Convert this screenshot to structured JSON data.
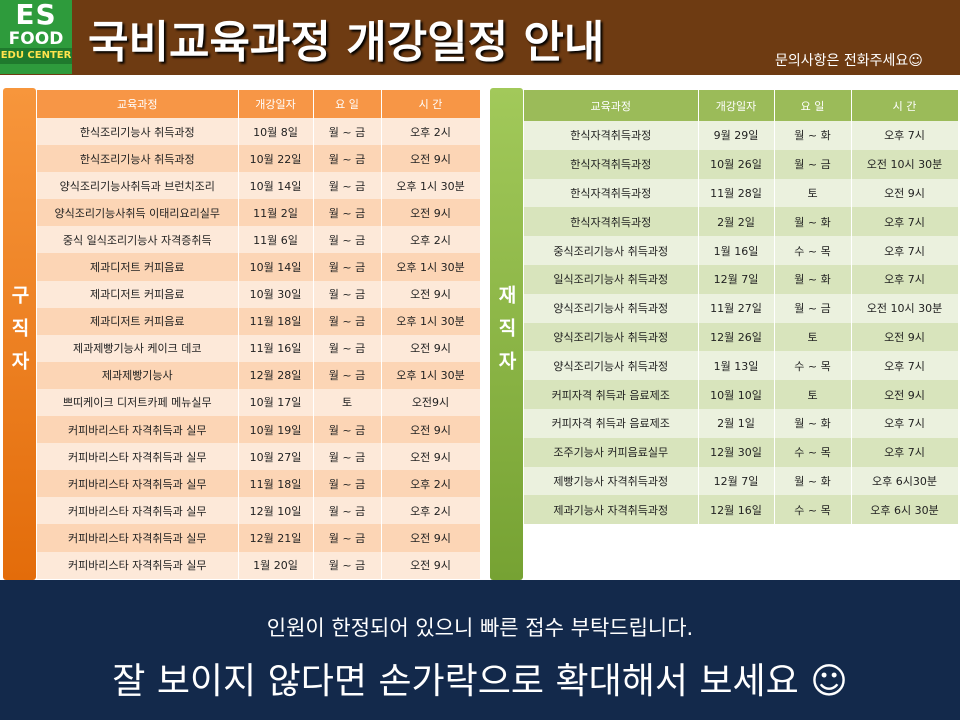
{
  "header": {
    "logo": {
      "top": "ES",
      "middle": "FOOD",
      "bottom": "EDU CENTER"
    },
    "title": "국비교육과정 개강일정 안내",
    "subtitle": "문의사항은 전화주세요☺"
  },
  "left_table": {
    "side_label": "구직자",
    "columns": [
      "교육과정",
      "개강일자",
      "요 일",
      "시 간"
    ],
    "rows": [
      [
        "한식조리기능사 취득과정",
        "10월 8일",
        "월 ~ 금",
        "오후 2시"
      ],
      [
        "한식조리기능사 취득과정",
        "10월 22일",
        "월 ~ 금",
        "오전 9시"
      ],
      [
        "양식조리기능사취득과 브런치조리",
        "10월 14일",
        "월 ~ 금",
        "오후 1시 30분"
      ],
      [
        "양식조리기능사취득 이태리요리실무",
        "11월 2일",
        "월 ~ 금",
        "오전 9시"
      ],
      [
        "중식 일식조리기능사 자격증취득",
        "11월 6일",
        "월 ~ 금",
        "오후 2시"
      ],
      [
        "제과디저트 커피음료",
        "10월 14일",
        "월 ~ 금",
        "오후 1시 30분"
      ],
      [
        "제과디저트 커피음료",
        "10월 30일",
        "월 ~ 금",
        "오전 9시"
      ],
      [
        "제과디저트 커피음료",
        "11월 18일",
        "월 ~ 금",
        "오후 1시 30분"
      ],
      [
        "제과제빵기능사 케이크 데코",
        "11월 16일",
        "월 ~ 금",
        "오전 9시"
      ],
      [
        "제과제빵기능사",
        "12월 28일",
        "월 ~ 금",
        "오후 1시 30분"
      ],
      [
        "쁘띠케이크 디저트카페 메뉴실무",
        "10월 17일",
        "토",
        "오전9시"
      ],
      [
        "커피바리스타 자격취득과 실무",
        "10월 19일",
        "월 ~ 금",
        "오전 9시"
      ],
      [
        "커피바리스타 자격취득과 실무",
        "10월 27일",
        "월 ~ 금",
        "오전 9시"
      ],
      [
        "커피바리스타 자격취득과 실무",
        "11월 18일",
        "월 ~ 금",
        "오후 2시"
      ],
      [
        "커피바리스타 자격취득과 실무",
        "12월 10일",
        "월 ~ 금",
        "오후 2시"
      ],
      [
        "커피바리스타 자격취득과 실무",
        "12월 21일",
        "월 ~ 금",
        "오전 9시"
      ],
      [
        "커피바리스타 자격취득과 실무",
        "1월 20일",
        "월 ~ 금",
        "오전 9시"
      ]
    ]
  },
  "right_table": {
    "side_label": "재직자",
    "columns": [
      "교육과정",
      "개강일자",
      "요 일",
      "시 간"
    ],
    "rows": [
      [
        "한식자격취득과정",
        "9월 29일",
        "월 ~ 화",
        "오후 7시"
      ],
      [
        "한식자격취득과정",
        "10월 26일",
        "월 ~ 금",
        "오전 10시 30분"
      ],
      [
        "한식자격취득과정",
        "11월 28일",
        "토",
        "오전 9시"
      ],
      [
        "한식자격취득과정",
        "2월 2일",
        "월 ~ 화",
        "오후 7시"
      ],
      [
        "중식조리기능사 취득과정",
        "1월 16일",
        "수 ~ 목",
        "오후 7시"
      ],
      [
        "일식조리기능사 취득과정",
        "12월 7일",
        "월 ~ 화",
        "오후 7시"
      ],
      [
        "양식조리기능사 취득과정",
        "11월 27일",
        "월 ~ 금",
        "오전 10시 30분"
      ],
      [
        "양식조리기능사 취득과정",
        "12월 26일",
        "토",
        "오전 9시"
      ],
      [
        "양식조리기능사 취득과정",
        "1월 13일",
        "수 ~ 목",
        "오후 7시"
      ],
      [
        "커피자격 취득과 음료제조",
        "10월 10일",
        "토",
        "오전 9시"
      ],
      [
        "커피자격 취득과 음료제조",
        "2월 1일",
        "월 ~ 화",
        "오후 7시"
      ],
      [
        "조주기능사 커피음료실무",
        "12월 30일",
        "수 ~ 목",
        "오후 7시"
      ],
      [
        "제빵기능사 자격취득과정",
        "12월 7일",
        "월 ~ 화",
        "오후 6시30분"
      ],
      [
        "제과기능사 자격취득과정",
        "12월 16일",
        "수 ~ 목",
        "오후 6시 30분"
      ]
    ]
  },
  "footer": {
    "line1": "인원이 한정되어 있으니 빠른 접수 부탁드립니다.",
    "line2": "잘 보이지 않다면 손가락으로 확대해서 보세요 ☺"
  }
}
